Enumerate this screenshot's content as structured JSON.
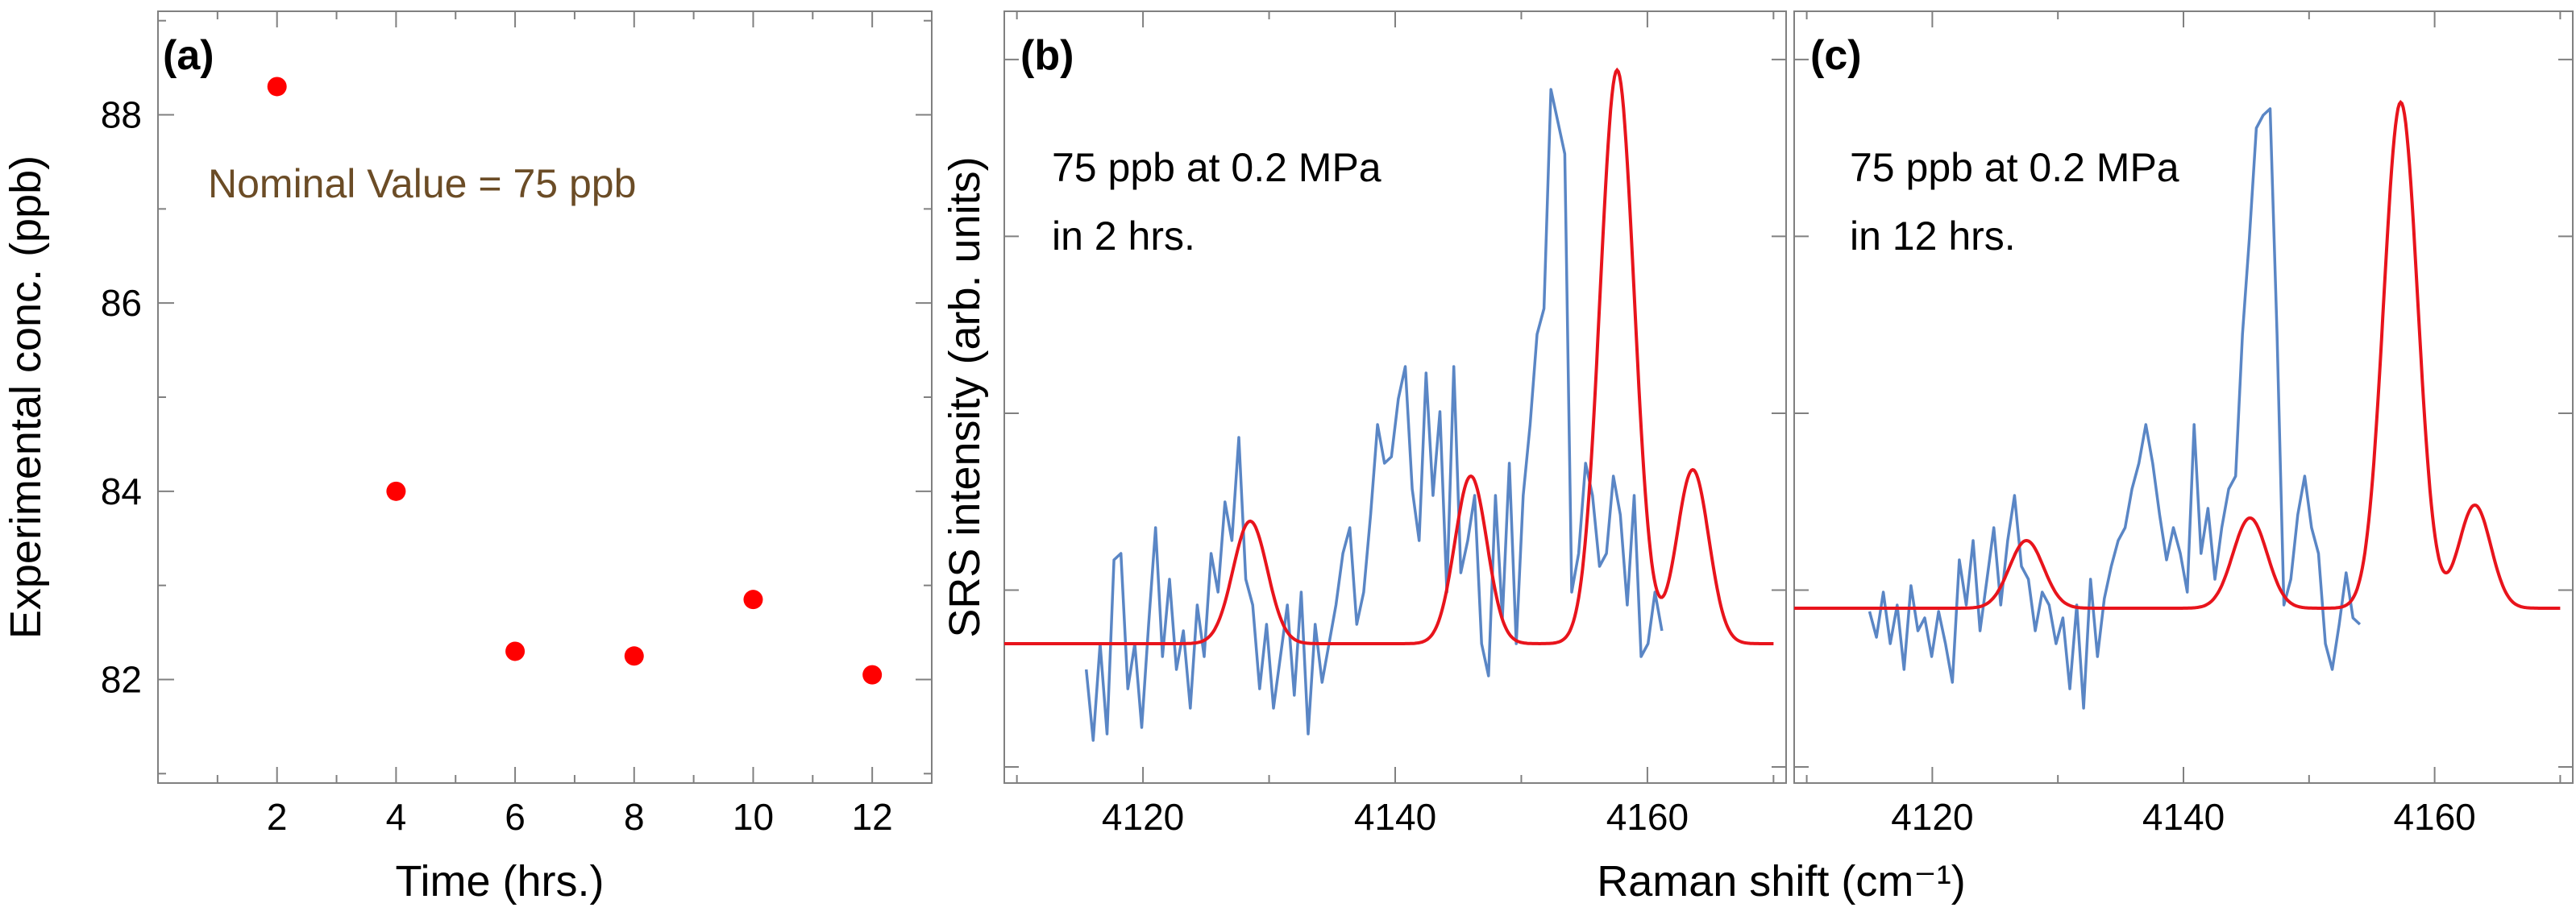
{
  "colors": {
    "points": "#ff0000",
    "fit": "#e8141c",
    "data": "#5a86c5",
    "nominal": "#6b4c26"
  },
  "chart_data": [
    {
      "type": "scatter",
      "panel_label": "(a)",
      "annotation": "Nominal Value = 75 ppb",
      "xlabel": "Time (hrs.)",
      "ylabel": "Experimental conc. (ppb)",
      "xlim": [
        0,
        13
      ],
      "ylim": [
        80.9,
        89.1
      ],
      "xticks": [
        2,
        4,
        6,
        8,
        10,
        12
      ],
      "yticks": [
        82,
        84,
        86,
        88
      ],
      "x": [
        2,
        4,
        6,
        8,
        10,
        12
      ],
      "y": [
        88.3,
        84.0,
        82.3,
        82.25,
        82.85,
        82.05
      ]
    },
    {
      "type": "line",
      "panel_label": "(b)",
      "annotation": [
        "75 ppb at 0.2 MPa",
        "in 2 hrs."
      ],
      "ylabel": "SRS intensity (arb. units)",
      "xlim": [
        4109,
        4171
      ],
      "ylim": [
        0,
        1
      ],
      "xticks": [
        4120,
        4140,
        4160
      ],
      "series": [
        {
          "name": "measured",
          "x0": 4115.5,
          "dx": 0.55,
          "y": [
            0.08,
            -0.03,
            0.12,
            -0.02,
            0.25,
            0.26,
            0.05,
            0.12,
            -0.01,
            0.15,
            0.3,
            0.1,
            0.22,
            0.08,
            0.14,
            0.02,
            0.18,
            0.1,
            0.26,
            0.2,
            0.34,
            0.28,
            0.44,
            0.22,
            0.18,
            0.05,
            0.15,
            0.02,
            0.1,
            0.18,
            0.04,
            0.2,
            -0.02,
            0.15,
            0.06,
            0.12,
            0.18,
            0.26,
            0.3,
            0.15,
            0.2,
            0.32,
            0.46,
            0.4,
            0.41,
            0.5,
            0.55,
            0.36,
            0.28,
            0.54,
            0.35,
            0.48,
            0.2,
            0.55,
            0.23,
            0.28,
            0.35,
            0.12,
            0.07,
            0.35,
            0.16,
            0.4,
            0.12,
            0.35,
            0.46,
            0.6,
            0.64,
            0.98,
            0.93,
            0.88,
            0.2,
            0.26,
            0.4,
            0.35,
            0.24,
            0.26,
            0.38,
            0.32,
            0.18,
            0.35,
            0.1,
            0.12,
            0.2,
            0.14
          ],
          "color": "#5a86c5"
        },
        {
          "name": "fit",
          "baseline": 0.12,
          "peaks": [
            {
              "center": 4128.5,
              "height": 0.19,
              "fwhm": 3.2
            },
            {
              "center": 4146.0,
              "height": 0.26,
              "fwhm": 3.0
            },
            {
              "center": 4157.6,
              "height": 0.89,
              "fwhm": 3.2
            },
            {
              "center": 4163.6,
              "height": 0.27,
              "fwhm": 3.0
            }
          ],
          "range": [
            4109,
            4170
          ],
          "color": "#e8141c"
        }
      ]
    },
    {
      "type": "line",
      "panel_label": "(c)",
      "annotation": [
        "75 ppb at 0.2 MPa",
        "in 12 hrs."
      ],
      "xlabel": "Raman shift (cm⁻¹)",
      "xlim": [
        4109,
        4171
      ],
      "ylim": [
        0,
        1
      ],
      "xticks": [
        4120,
        4140,
        4160
      ],
      "series": [
        {
          "name": "measured",
          "x0": 4115.0,
          "dx": 0.55,
          "y": [
            0.17,
            0.13,
            0.2,
            0.12,
            0.18,
            0.08,
            0.21,
            0.14,
            0.16,
            0.1,
            0.17,
            0.12,
            0.06,
            0.25,
            0.18,
            0.28,
            0.14,
            0.22,
            0.3,
            0.18,
            0.28,
            0.35,
            0.24,
            0.22,
            0.14,
            0.2,
            0.18,
            0.12,
            0.16,
            0.05,
            0.18,
            0.02,
            0.22,
            0.1,
            0.19,
            0.24,
            0.28,
            0.3,
            0.36,
            0.4,
            0.46,
            0.4,
            0.32,
            0.25,
            0.3,
            0.26,
            0.2,
            0.46,
            0.26,
            0.33,
            0.22,
            0.3,
            0.36,
            0.38,
            0.6,
            0.75,
            0.92,
            0.94,
            0.95,
            0.6,
            0.18,
            0.22,
            0.32,
            0.38,
            0.3,
            0.26,
            0.12,
            0.08,
            0.15,
            0.23,
            0.16,
            0.15
          ],
          "color": "#5a86c5"
        },
        {
          "name": "fit",
          "baseline": 0.175,
          "peaks": [
            {
              "center": 4127.5,
              "height": 0.105,
              "fwhm": 3.2
            },
            {
              "center": 4145.3,
              "height": 0.14,
              "fwhm": 3.2
            },
            {
              "center": 4157.3,
              "height": 0.785,
              "fwhm": 3.2
            },
            {
              "center": 4163.2,
              "height": 0.16,
              "fwhm": 3.0
            }
          ],
          "range": [
            4109,
            4170
          ],
          "color": "#e8141c"
        }
      ]
    }
  ]
}
